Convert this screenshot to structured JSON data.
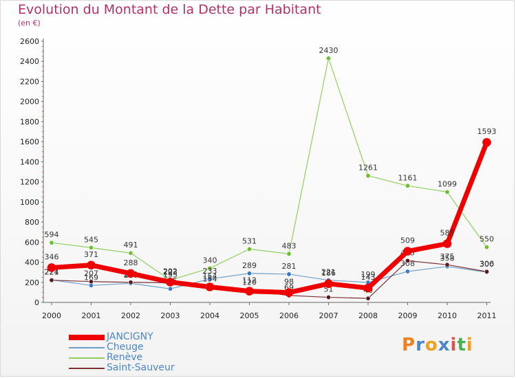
{
  "title": "Evolution du Montant de la Dette par Habitant",
  "subtitle": "(en €)",
  "logo": {
    "text": "Proxiti",
    "letters": [
      {
        "c": "P",
        "color": "#f08020"
      },
      {
        "c": "r",
        "color": "#4a86c8"
      },
      {
        "c": "o",
        "color": "#f0a020"
      },
      {
        "c": "x",
        "color": "#4a86c8"
      },
      {
        "c": "i",
        "color": "#e05050"
      },
      {
        "c": "t",
        "color": "#4ab050"
      },
      {
        "c": "i",
        "color": "#f0a020"
      }
    ]
  },
  "legend": [
    {
      "label": "JANCIGNY",
      "color": "#ee0000",
      "thickness": 8
    },
    {
      "label": "Cheuge",
      "color": "#6fa0c8",
      "thickness": 2
    },
    {
      "label": "Renève",
      "color": "#8fd05f",
      "thickness": 2
    },
    {
      "label": "Saint-Sauveur",
      "color": "#7a2f35",
      "thickness": 2
    }
  ],
  "chart_data": {
    "type": "line",
    "title": "Evolution du Montant de la Dette par Habitant",
    "subtitle": "(en €)",
    "x": [
      "2000",
      "2001",
      "2002",
      "2003",
      "2004",
      "2005",
      "2006",
      "2007",
      "2008",
      "2009",
      "2010",
      "2011"
    ],
    "ylim": [
      0,
      2600
    ],
    "yticks": [
      0,
      200,
      400,
      600,
      800,
      1000,
      1200,
      1400,
      1600,
      1800,
      2000,
      2200,
      2400,
      2600
    ],
    "grid": false,
    "legend_position": "bottom-left",
    "series": [
      {
        "name": "Renève",
        "color": "#8fd05f",
        "marker": "#6cc030",
        "width": 1.2,
        "r": 3.2,
        "values": [
          594,
          545,
          491,
          223,
          340,
          531,
          483,
          2430,
          1261,
          1161,
          1099,
          550
        ]
      },
      {
        "name": "Cheuge",
        "color": "#6fa0c8",
        "marker": "#3a78c0",
        "width": 1.2,
        "r": 3.2,
        "values": [
          224,
          169,
          190,
          135,
          233,
          289,
          281,
          221,
          199,
          308,
          358,
          300
        ]
      },
      {
        "name": "Saint-Sauveur",
        "color": "#7a2f35",
        "marker": "#5a1a20",
        "width": 1.2,
        "r": 3.2,
        "values": [
          221,
          207,
          200,
          195,
          154,
          120,
          69,
          51,
          40,
          415,
          375,
          306
        ]
      },
      {
        "name": "JANCIGNY",
        "color": "#ee0000",
        "marker": "#ee0000",
        "width": 7,
        "r": 6,
        "values": [
          346,
          371,
          288,
          202,
          154,
          112,
          98,
          186,
          143,
          509,
          585,
          1593
        ]
      }
    ]
  }
}
